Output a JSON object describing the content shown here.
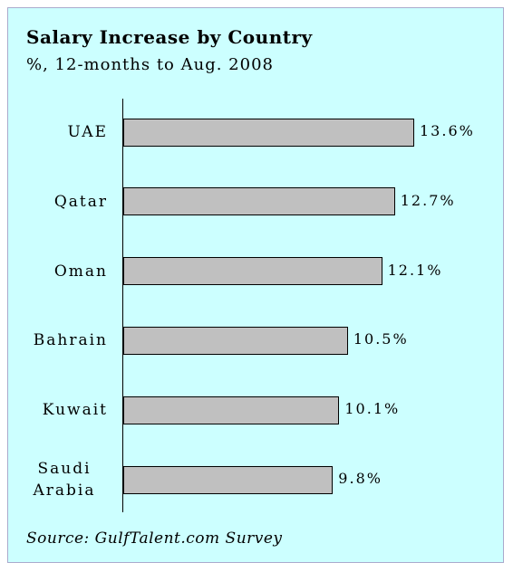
{
  "chart_data": {
    "type": "bar",
    "orientation": "horizontal",
    "title": "Salary Increase by Country",
    "subtitle": "%, 12-months to Aug. 2008",
    "source": "Source: GulfTalent.com Survey",
    "categories": [
      "UAE",
      "Qatar",
      "Oman",
      "Bahrain",
      "Kuwait",
      "Saudi Arabia"
    ],
    "values": [
      13.6,
      12.7,
      12.1,
      10.5,
      10.1,
      9.8
    ],
    "value_labels": [
      "13.6%",
      "12.7%",
      "12.1%",
      "10.5%",
      "10.1%",
      "9.8%"
    ],
    "color": "#c0c0c0"
  }
}
